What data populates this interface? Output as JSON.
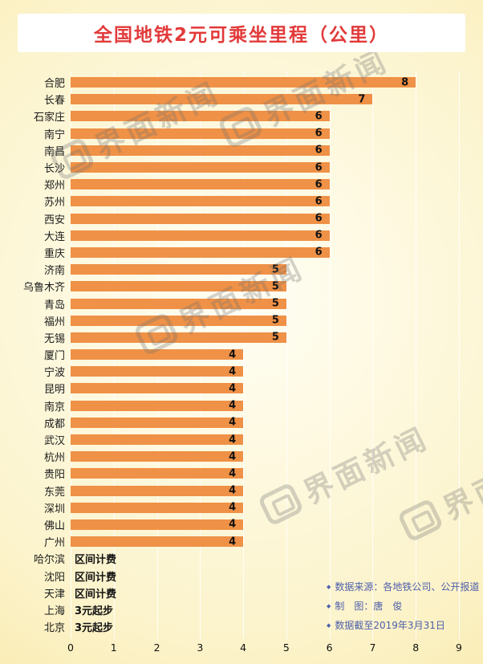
{
  "title": "全国地铁2元可乘坐里程（公里）",
  "watermark": {
    "text": "界面新闻"
  },
  "chart_data": {
    "type": "bar",
    "orientation": "horizontal",
    "title": "全国地铁2元可乘坐里程（公里）",
    "xlabel": "",
    "ylabel": "",
    "xlim": [
      0,
      9
    ],
    "xticks": [
      0,
      1,
      2,
      3,
      4,
      5,
      6,
      7,
      8,
      9
    ],
    "bar_color": "#EF9146",
    "grid": true,
    "rows": [
      {
        "city": "合肥",
        "value": 8
      },
      {
        "city": "长春",
        "value": 7
      },
      {
        "city": "石家庄",
        "value": 6
      },
      {
        "city": "南宁",
        "value": 6
      },
      {
        "city": "南昌",
        "value": 6
      },
      {
        "city": "长沙",
        "value": 6
      },
      {
        "city": "郑州",
        "value": 6
      },
      {
        "city": "苏州",
        "value": 6
      },
      {
        "city": "西安",
        "value": 6
      },
      {
        "city": "大连",
        "value": 6
      },
      {
        "city": "重庆",
        "value": 6
      },
      {
        "city": "济南",
        "value": 5
      },
      {
        "city": "乌鲁木齐",
        "value": 5
      },
      {
        "city": "青岛",
        "value": 5
      },
      {
        "city": "福州",
        "value": 5
      },
      {
        "city": "无锡",
        "value": 5
      },
      {
        "city": "厦门",
        "value": 4
      },
      {
        "city": "宁波",
        "value": 4
      },
      {
        "city": "昆明",
        "value": 4
      },
      {
        "city": "南京",
        "value": 4
      },
      {
        "city": "成都",
        "value": 4
      },
      {
        "city": "武汉",
        "value": 4
      },
      {
        "city": "杭州",
        "value": 4
      },
      {
        "city": "贵阳",
        "value": 4
      },
      {
        "city": "东莞",
        "value": 4
      },
      {
        "city": "深圳",
        "value": 4
      },
      {
        "city": "佛山",
        "value": 4
      },
      {
        "city": "广州",
        "value": 4
      },
      {
        "city": "哈尔滨",
        "value": null,
        "note": "区间计费"
      },
      {
        "city": "沈阳",
        "value": null,
        "note": "区间计费"
      },
      {
        "city": "天津",
        "value": null,
        "note": "区间计费"
      },
      {
        "city": "上海",
        "value": null,
        "note": "3元起步"
      },
      {
        "city": "北京",
        "value": null,
        "note": "3元起步"
      }
    ]
  },
  "footnotes": [
    "数据来源：各地铁公司、公开报道",
    "制　图：唐　俊",
    "数据截至2019年3月31日"
  ]
}
